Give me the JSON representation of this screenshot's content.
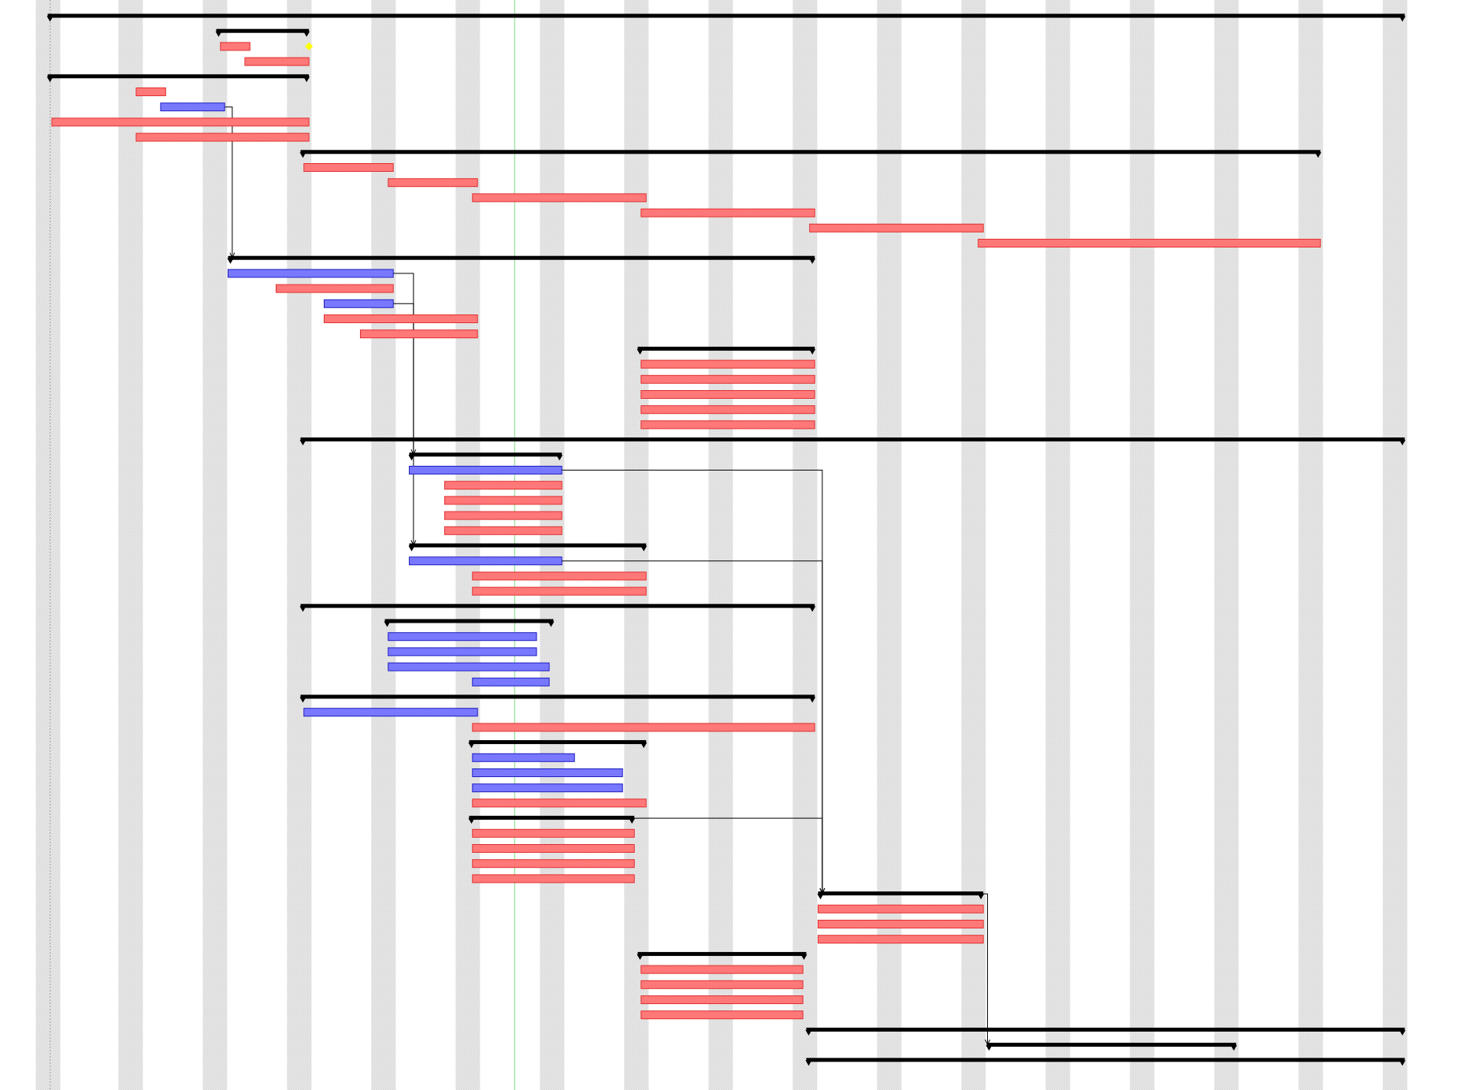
{
  "colors": {
    "background": "#ffffff",
    "weekend_band": "#ececec",
    "weekend_hatch": "#d4d4d4",
    "summary_bar": "#000000",
    "task_bar_fill": "#ff8080",
    "task_bar_border": "#e03030",
    "critical_bar_fill": "#8080ff",
    "critical_bar_border": "#2020c0",
    "milestone": "#ffff00",
    "today_line": "#7fdc7f",
    "start_line": "#a0a0a0",
    "dependency_line": "#000000"
  },
  "chart_data": {
    "type": "gantt",
    "x_unit": "days",
    "x_range": [
      0,
      166
    ],
    "title": "",
    "xlabel": "",
    "ylabel": "",
    "grid": "weekend columns",
    "legend": "none",
    "today_day": 55.4,
    "project_start_day": 0.3,
    "weekend_bands": [
      0,
      9.8,
      19.8,
      29.8,
      39.8,
      49.8,
      59.8,
      69.8,
      79.8,
      89.8,
      99.8,
      109.8,
      119.8,
      129.8,
      139.8,
      149.8,
      159.8
    ],
    "weekend_band_width_days": 2.9,
    "rows": [
      {
        "row": 0,
        "kind": "summary",
        "start": 0,
        "end": 161
      },
      {
        "row": 1,
        "kind": "summary",
        "start": 20,
        "end": 31
      },
      {
        "row": 2,
        "kind": "task",
        "start": 20.5,
        "end": 24
      },
      {
        "row": 2,
        "kind": "milestone",
        "at": 31
      },
      {
        "row": 3,
        "kind": "task",
        "start": 23.4,
        "end": 31
      },
      {
        "row": 4,
        "kind": "summary",
        "start": 0,
        "end": 31
      },
      {
        "row": 5,
        "kind": "task",
        "start": 10.5,
        "end": 14
      },
      {
        "row": 6,
        "kind": "critical",
        "start": 13.4,
        "end": 21
      },
      {
        "row": 7,
        "kind": "task",
        "start": 0.5,
        "end": 31
      },
      {
        "row": 8,
        "kind": "task",
        "start": 10.5,
        "end": 31
      },
      {
        "row": 9,
        "kind": "summary",
        "start": 30,
        "end": 151
      },
      {
        "row": 10,
        "kind": "task",
        "start": 30.4,
        "end": 41
      },
      {
        "row": 11,
        "kind": "task",
        "start": 40.4,
        "end": 51
      },
      {
        "row": 12,
        "kind": "task",
        "start": 50.4,
        "end": 71
      },
      {
        "row": 13,
        "kind": "task",
        "start": 70.4,
        "end": 91
      },
      {
        "row": 14,
        "kind": "task",
        "start": 90.4,
        "end": 111
      },
      {
        "row": 15,
        "kind": "task",
        "start": 110.4,
        "end": 151
      },
      {
        "row": 16,
        "kind": "summary",
        "start": 21.4,
        "end": 91
      },
      {
        "row": 17,
        "kind": "critical",
        "start": 21.4,
        "end": 41
      },
      {
        "row": 18,
        "kind": "task",
        "start": 27.1,
        "end": 41
      },
      {
        "row": 19,
        "kind": "critical",
        "start": 32.8,
        "end": 41
      },
      {
        "row": 20,
        "kind": "task",
        "start": 32.8,
        "end": 51
      },
      {
        "row": 21,
        "kind": "task",
        "start": 37.1,
        "end": 51
      },
      {
        "row": 22,
        "kind": "summary",
        "start": 70,
        "end": 91
      },
      {
        "row": 23,
        "kind": "task",
        "start": 70.4,
        "end": 91
      },
      {
        "row": 24,
        "kind": "task",
        "start": 70.4,
        "end": 91
      },
      {
        "row": 25,
        "kind": "task",
        "start": 70.4,
        "end": 91
      },
      {
        "row": 26,
        "kind": "task",
        "start": 70.4,
        "end": 91
      },
      {
        "row": 27,
        "kind": "task",
        "start": 70.4,
        "end": 91
      },
      {
        "row": 28,
        "kind": "summary",
        "start": 30,
        "end": 161
      },
      {
        "row": 29,
        "kind": "summary",
        "start": 42.9,
        "end": 61
      },
      {
        "row": 30,
        "kind": "critical",
        "start": 42.9,
        "end": 61
      },
      {
        "row": 31,
        "kind": "task",
        "start": 47.1,
        "end": 61
      },
      {
        "row": 32,
        "kind": "task",
        "start": 47.1,
        "end": 61
      },
      {
        "row": 33,
        "kind": "task",
        "start": 47.1,
        "end": 61
      },
      {
        "row": 34,
        "kind": "task",
        "start": 47.1,
        "end": 61
      },
      {
        "row": 35,
        "kind": "summary",
        "start": 42.9,
        "end": 71
      },
      {
        "row": 36,
        "kind": "critical",
        "start": 42.9,
        "end": 61
      },
      {
        "row": 37,
        "kind": "task",
        "start": 50.4,
        "end": 71
      },
      {
        "row": 38,
        "kind": "task",
        "start": 50.4,
        "end": 71
      },
      {
        "row": 39,
        "kind": "summary",
        "start": 30,
        "end": 91
      },
      {
        "row": 40,
        "kind": "summary",
        "start": 40,
        "end": 60
      },
      {
        "row": 41,
        "kind": "critical",
        "start": 40.4,
        "end": 58
      },
      {
        "row": 42,
        "kind": "critical",
        "start": 40.4,
        "end": 58
      },
      {
        "row": 43,
        "kind": "critical",
        "start": 40.4,
        "end": 59.5
      },
      {
        "row": 44,
        "kind": "critical",
        "start": 50.4,
        "end": 59.5
      },
      {
        "row": 45,
        "kind": "summary",
        "start": 30,
        "end": 91
      },
      {
        "row": 46,
        "kind": "critical",
        "start": 30.4,
        "end": 51
      },
      {
        "row": 47,
        "kind": "task",
        "start": 50.4,
        "end": 91
      },
      {
        "row": 48,
        "kind": "summary",
        "start": 50,
        "end": 71
      },
      {
        "row": 49,
        "kind": "critical",
        "start": 50.4,
        "end": 62.5
      },
      {
        "row": 50,
        "kind": "critical",
        "start": 50.4,
        "end": 68.2
      },
      {
        "row": 51,
        "kind": "critical",
        "start": 50.4,
        "end": 68.2
      },
      {
        "row": 52,
        "kind": "task",
        "start": 50.4,
        "end": 71
      },
      {
        "row": 53,
        "kind": "summary",
        "start": 50,
        "end": 69.6
      },
      {
        "row": 54,
        "kind": "task",
        "start": 50.4,
        "end": 69.6
      },
      {
        "row": 55,
        "kind": "task",
        "start": 50.4,
        "end": 69.6
      },
      {
        "row": 56,
        "kind": "task",
        "start": 50.4,
        "end": 69.6
      },
      {
        "row": 57,
        "kind": "task",
        "start": 50.4,
        "end": 69.6
      },
      {
        "row": 58,
        "kind": "summary",
        "start": 91.4,
        "end": 111
      },
      {
        "row": 59,
        "kind": "task",
        "start": 91.4,
        "end": 111
      },
      {
        "row": 60,
        "kind": "task",
        "start": 91.4,
        "end": 111
      },
      {
        "row": 61,
        "kind": "task",
        "start": 91.4,
        "end": 111
      },
      {
        "row": 62,
        "kind": "summary",
        "start": 70,
        "end": 90
      },
      {
        "row": 63,
        "kind": "task",
        "start": 70.4,
        "end": 89.6
      },
      {
        "row": 64,
        "kind": "task",
        "start": 70.4,
        "end": 89.6
      },
      {
        "row": 65,
        "kind": "task",
        "start": 70.4,
        "end": 89.6
      },
      {
        "row": 66,
        "kind": "task",
        "start": 70.4,
        "end": 89.6
      },
      {
        "row": 67,
        "kind": "summary",
        "start": 90,
        "end": 161
      },
      {
        "row": 68,
        "kind": "summary",
        "start": 111.4,
        "end": 141
      },
      {
        "row": 69,
        "kind": "summary",
        "start": 90,
        "end": 161
      }
    ],
    "dependencies": [
      {
        "from_row": 6,
        "to_row": 16,
        "from_day": 21,
        "trunk_day": 21.9,
        "to_day": 21.9
      },
      {
        "from_row": 17,
        "to_row": 29,
        "from_day": 41,
        "trunk_day": 43.4,
        "to_day": 43.4
      },
      {
        "from_row": 19,
        "to_row": 35,
        "from_day": 41,
        "trunk_day": 43.4,
        "to_day": 43.4
      },
      {
        "from_row": 30,
        "to_row": 58,
        "from_day": 61,
        "trunk_day": 91.9,
        "to_day": 91.9
      },
      {
        "from_row": 36,
        "to_row": 58,
        "from_day": 61,
        "trunk_day": 91.9,
        "to_day": 91.9
      },
      {
        "from_row": 53,
        "to_row": 58,
        "from_day": 69.6,
        "trunk_day": 91.9,
        "to_day": 91.9
      },
      {
        "from_row": 58,
        "to_row": 68,
        "from_day": 111,
        "trunk_day": 111.5,
        "to_day": 111.5
      }
    ]
  }
}
